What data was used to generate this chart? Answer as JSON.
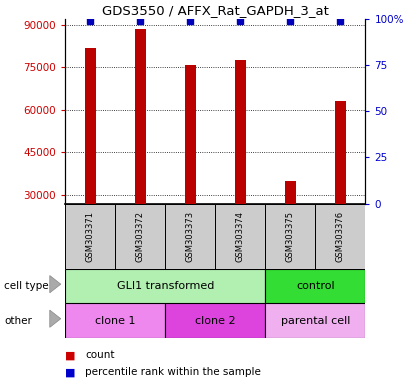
{
  "title": "GDS3550 / AFFX_Rat_GAPDH_3_at",
  "samples": [
    "GSM303371",
    "GSM303372",
    "GSM303373",
    "GSM303374",
    "GSM303375",
    "GSM303376"
  ],
  "counts": [
    82000,
    88500,
    76000,
    77500,
    35000,
    63000
  ],
  "percentile_ranks": [
    99,
    99,
    99,
    99,
    99,
    99
  ],
  "ylim_left": [
    27000,
    92000
  ],
  "yticks_left": [
    30000,
    45000,
    60000,
    75000,
    90000
  ],
  "ylim_right": [
    0,
    100
  ],
  "yticks_right": [
    0,
    25,
    50,
    75,
    100
  ],
  "cell_type_groups": [
    {
      "label": "GLI1 transformed",
      "start": 0,
      "end": 4,
      "color": "#b2f0b2"
    },
    {
      "label": "control",
      "start": 4,
      "end": 6,
      "color": "#33dd33"
    }
  ],
  "other_groups": [
    {
      "label": "clone 1",
      "start": 0,
      "end": 2,
      "color": "#ee88ee"
    },
    {
      "label": "clone 2",
      "start": 2,
      "end": 4,
      "color": "#dd44dd"
    },
    {
      "label": "parental cell",
      "start": 4,
      "end": 6,
      "color": "#f0b0f0"
    }
  ],
  "bar_color": "#bb0000",
  "percentile_color": "#0000bb",
  "label_color_left": "#cc0000",
  "label_color_right": "#0000cc",
  "sample_box_color": "#cccccc",
  "legend_count_color": "#cc0000",
  "legend_pct_color": "#0000cc",
  "fig_bg": "#ffffff"
}
